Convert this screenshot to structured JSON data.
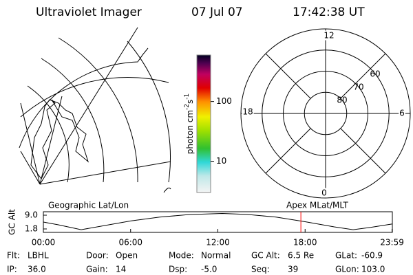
{
  "header": {
    "title": "Ultraviolet Imager",
    "date": "07 Jul 07",
    "time": "17:42:38 UT"
  },
  "colorbar": {
    "unit": "photon cm",
    "exp1": "-2",
    "unit2": "s",
    "exp2": "-1",
    "log": true,
    "lim": [
      3,
      600
    ],
    "ticks": [
      10,
      100
    ]
  },
  "polar": {
    "rings": [
      80,
      70,
      60
    ],
    "rlim": [
      90,
      50
    ],
    "hours": [
      "12",
      "6",
      "0",
      "18"
    ]
  },
  "chart_data": {
    "type": "line",
    "title": "Geographic Lat/Lon",
    "subtitle": "Apex MLat/MLT",
    "y_label": "GC Alt",
    "xlim": [
      0,
      24
    ],
    "xticks": [
      {
        "value": 0,
        "label": "00:00"
      },
      {
        "value": 6,
        "label": "06:00"
      },
      {
        "value": 12,
        "label": "12:00"
      },
      {
        "value": 18,
        "label": "18:00"
      },
      {
        "value": 23.98,
        "label": "23:59"
      }
    ],
    "ylim": [
      0,
      10.8
    ],
    "yticks": [
      1.8,
      {
        "value": 9,
        "label": "9.0"
      }
    ],
    "marker_x": 17.71,
    "marker_color": "#ff0000",
    "color": "#000000",
    "x": [
      0,
      1,
      2,
      2.6,
      4,
      6,
      8,
      10,
      12.3,
      14,
      16,
      18,
      20,
      21.3,
      22.5,
      24
    ],
    "values": [
      5.4,
      4.0,
      2.4,
      1.4,
      3.3,
      6.0,
      8.0,
      9.3,
      9.9,
      9.4,
      8.0,
      5.6,
      2.9,
      1.4,
      2.6,
      4.4
    ]
  },
  "footer": {
    "rows": [
      [
        [
          "Flt:",
          "LBHL"
        ],
        [
          "Door:",
          "Open"
        ],
        [
          "Mode:",
          "Normal"
        ],
        [
          "GC Alt:",
          "6.5 Re"
        ],
        [
          "GLat:",
          "-60.9"
        ]
      ],
      [
        [
          "IP:",
          "36.0"
        ],
        [
          "Gain:",
          "14"
        ],
        [
          "Dsp:",
          "-5.0"
        ],
        [
          "Seq:",
          "39"
        ],
        [
          "GLon:",
          "103.0"
        ]
      ]
    ]
  }
}
